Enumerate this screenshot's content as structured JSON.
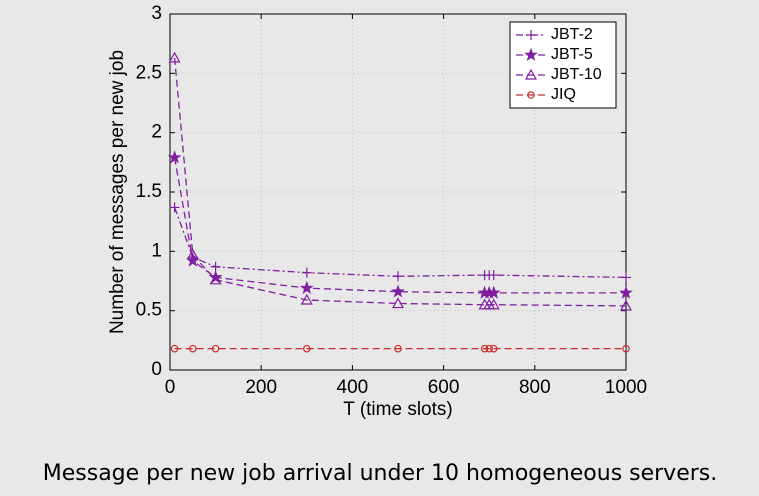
{
  "chart_data": {
    "type": "line",
    "caption": "Message per new job arrival under 10 homogeneous servers.",
    "xlabel": "T (time slots)",
    "ylabel": "Number of messages per new job",
    "x": [
      10,
      50,
      100,
      300,
      500,
      690,
      700,
      710,
      1000
    ],
    "series": [
      {
        "name": "JBT-2",
        "color": "#7f1fa0",
        "marker": "plus",
        "linestyle": "dashdot",
        "values": [
          1.37,
          0.95,
          0.87,
          0.82,
          0.79,
          0.8,
          0.8,
          0.8,
          0.78
        ]
      },
      {
        "name": "JBT-5",
        "color": "#7f1fa0",
        "marker": "star",
        "linestyle": "dashed",
        "values": [
          1.79,
          0.92,
          0.78,
          0.69,
          0.66,
          0.65,
          0.65,
          0.65,
          0.65
        ]
      },
      {
        "name": "JBT-10",
        "color": "#7f1fa0",
        "marker": "triangle",
        "linestyle": "dashed",
        "values": [
          2.63,
          0.97,
          0.76,
          0.59,
          0.56,
          0.55,
          0.55,
          0.55,
          0.54
        ]
      },
      {
        "name": "JIQ",
        "color": "#cc2b2b",
        "marker": "circle",
        "linestyle": "dashed",
        "values": [
          0.18,
          0.18,
          0.18,
          0.18,
          0.18,
          0.18,
          0.18,
          0.18,
          0.18
        ]
      }
    ],
    "xlim": [
      0,
      1000
    ],
    "xticks": [
      0,
      200,
      400,
      600,
      800,
      1000
    ],
    "ylim": [
      0,
      3
    ],
    "yticks": [
      0,
      0.5,
      1,
      1.5,
      2,
      2.5,
      3
    ],
    "grid": true,
    "legend": "upper right"
  }
}
